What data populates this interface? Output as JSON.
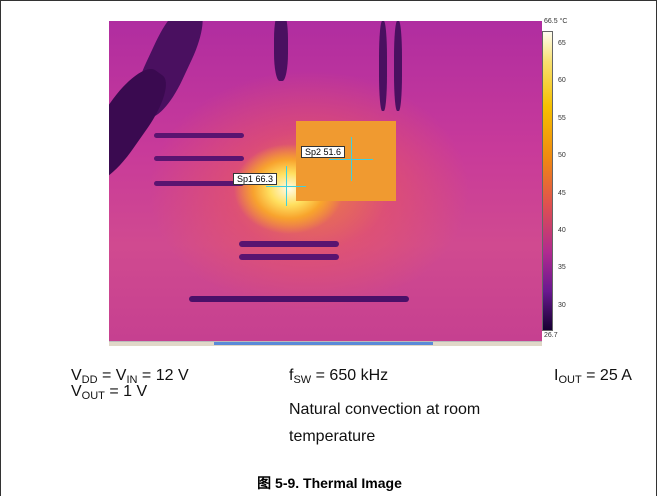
{
  "figure": {
    "thermal_image": {
      "scale_max": "66.5 °C",
      "scale_min": "26.7",
      "scale_ticks": [
        "65",
        "60",
        "55",
        "50",
        "45",
        "40",
        "35",
        "30"
      ],
      "spots": [
        {
          "label": "Sp1 66.3"
        },
        {
          "label": "Sp2 51.6"
        }
      ]
    },
    "conditions": {
      "vdd_vin": [
        "V",
        "DD",
        " = V",
        "IN",
        " = 12 V"
      ],
      "fsw": [
        "f",
        "SW",
        " = 650 kHz"
      ],
      "iout": [
        "I",
        "OUT",
        " = 25 A"
      ],
      "vout": [
        "V",
        "OUT",
        " = 1 V"
      ],
      "convection": [
        "Natural convection at room",
        "temperature"
      ]
    },
    "caption": "图 5-9. Thermal Image"
  }
}
